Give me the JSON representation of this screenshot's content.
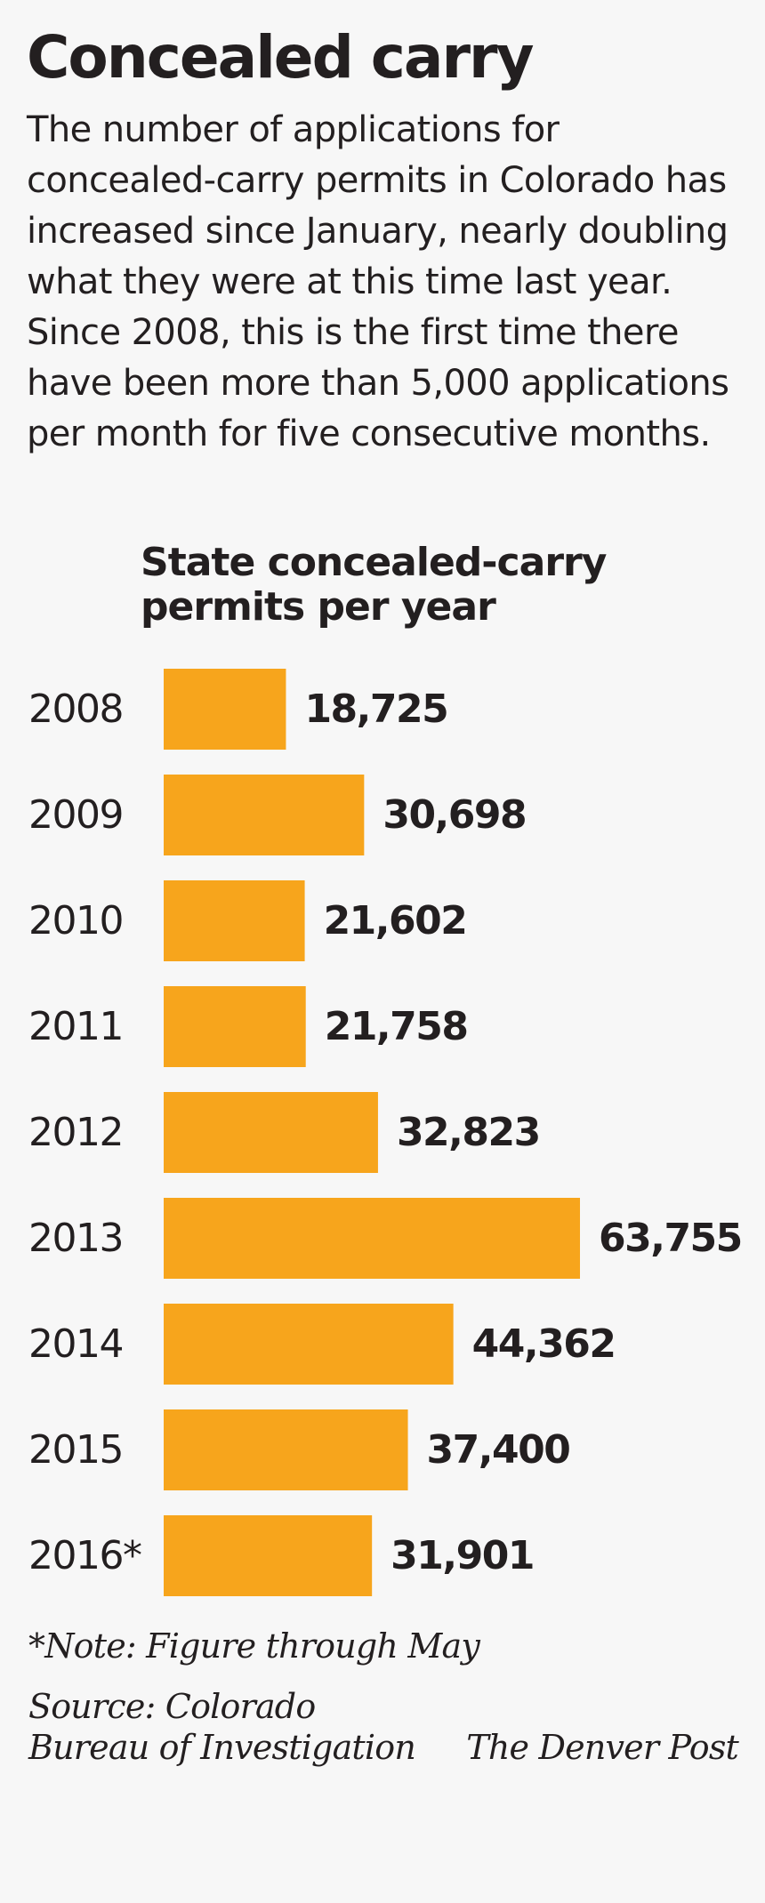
{
  "headline": "Concealed carry",
  "intro": "The number of applications for concealed-carry permits in Colorado has increased since January, nearly doubling what they were at this time last year. Since 2008, this is the first time there have been more than 5,000 applications per month for five consecutive months.",
  "chart_data": {
    "type": "bar",
    "orientation": "horizontal",
    "title_line1": "State concealed-carry",
    "title_line2": "permits per year",
    "categories": [
      "2008",
      "2009",
      "2010",
      "2011",
      "2012",
      "2013",
      "2014",
      "2015",
      "2016*"
    ],
    "values": [
      18725,
      30698,
      21602,
      21758,
      32823,
      63755,
      44362,
      37400,
      31901
    ],
    "value_labels": [
      "18,725",
      "30,698",
      "21,602",
      "21,758",
      "32,823",
      "63,755",
      "44,362",
      "37,400",
      "31,901"
    ],
    "bar_color": "#f7a51c",
    "grid": false,
    "legend": "none"
  },
  "footnote": "*Note: Figure through May",
  "source_line1": "Source: Colorado",
  "source_line2": "Bureau of Investigation",
  "credit": "The Denver Post"
}
